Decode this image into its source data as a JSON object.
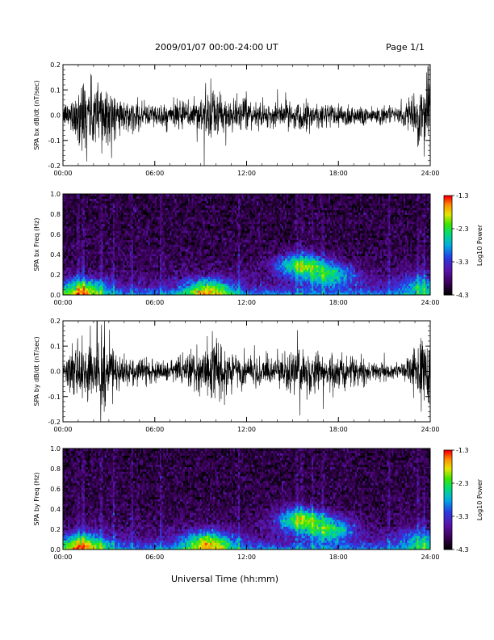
{
  "header": {
    "date_range": "2009/01/07  00:00-24:00 UT",
    "page": "Page 1/1"
  },
  "x_axis_title": "Universal Time (hh:mm)",
  "chart_data": [
    {
      "type": "line",
      "ylabel": "SPA bx dB/dt (nT/sec)",
      "xlim": [
        "00:00",
        "24:00"
      ],
      "ylim": [
        -0.2,
        0.2
      ],
      "xticks": [
        "00:00",
        "06:00",
        "12:00",
        "18:00",
        "24:00"
      ],
      "yticks": [
        "-0.2",
        "-0.1",
        "0.0",
        "0.1",
        "0.2"
      ],
      "envelope_hours": [
        0,
        0.5,
        1,
        1.3,
        1.5,
        2,
        2.5,
        3,
        3.5,
        4,
        5,
        6,
        7,
        8,
        9,
        9.5,
        10,
        11,
        12,
        13,
        14,
        15,
        16,
        17,
        18,
        19,
        20,
        21,
        22,
        22.5,
        23,
        23.5,
        24
      ],
      "envelope_amplitude": [
        0.04,
        0.07,
        0.12,
        0.2,
        0.16,
        0.14,
        0.2,
        0.12,
        0.08,
        0.06,
        0.06,
        0.05,
        0.05,
        0.06,
        0.09,
        0.11,
        0.1,
        0.07,
        0.06,
        0.05,
        0.05,
        0.06,
        0.06,
        0.06,
        0.05,
        0.05,
        0.04,
        0.04,
        0.03,
        0.06,
        0.1,
        0.14,
        0.17
      ]
    },
    {
      "type": "heatmap",
      "ylabel": "SPA bx Freq (Hz)",
      "xlim": [
        "00:00",
        "24:00"
      ],
      "ylim": [
        0.0,
        1.0
      ],
      "xticks": [
        "00:00",
        "06:00",
        "12:00",
        "18:00",
        "24:00"
      ],
      "yticks": [
        "0.0",
        "0.2",
        "0.4",
        "0.6",
        "0.8",
        "1.0"
      ],
      "colorbar": {
        "label": "Log10 Power",
        "min": -4.3,
        "max": -1.3,
        "ticks": [
          "-1.3",
          "-2.3",
          "-3.3",
          "-4.3"
        ]
      },
      "activity_blobs": [
        {
          "t": 9.5,
          "f": 0.05,
          "power": -2.2
        },
        {
          "t": 15.5,
          "f": 0.3,
          "power": -2.1
        },
        {
          "t": 17.5,
          "f": 0.2,
          "power": -2.5
        },
        {
          "t": 1.3,
          "f": 0.05,
          "power": -2.3
        },
        {
          "t": 23.5,
          "f": 0.1,
          "power": -3.0
        }
      ]
    },
    {
      "type": "line",
      "ylabel": "SPA by dB/dt (nT/sec)",
      "xlim": [
        "00:00",
        "24:00"
      ],
      "ylim": [
        -0.2,
        0.2
      ],
      "xticks": [
        "00:00",
        "06:00",
        "12:00",
        "18:00",
        "24:00"
      ],
      "yticks": [
        "-0.2",
        "-0.1",
        "0.0",
        "0.1",
        "0.2"
      ],
      "envelope_hours": [
        0,
        0.5,
        1,
        1.3,
        1.5,
        2,
        2.5,
        3,
        3.5,
        4,
        5,
        6,
        7,
        8,
        9,
        9.5,
        10,
        11,
        12,
        13,
        14,
        15,
        16,
        17,
        18,
        19,
        20,
        21,
        22,
        22.5,
        23,
        23.5,
        24
      ],
      "envelope_amplitude": [
        0.05,
        0.08,
        0.14,
        0.2,
        0.15,
        0.13,
        0.2,
        0.12,
        0.08,
        0.06,
        0.05,
        0.04,
        0.04,
        0.06,
        0.11,
        0.13,
        0.12,
        0.08,
        0.06,
        0.06,
        0.07,
        0.09,
        0.1,
        0.08,
        0.07,
        0.06,
        0.05,
        0.04,
        0.03,
        0.06,
        0.12,
        0.16,
        0.18
      ]
    },
    {
      "type": "heatmap",
      "ylabel": "SPA by Freq (Hz)",
      "xlim": [
        "00:00",
        "24:00"
      ],
      "ylim": [
        0.0,
        1.0
      ],
      "xticks": [
        "00:00",
        "06:00",
        "12:00",
        "18:00",
        "24:00"
      ],
      "yticks": [
        "0.0",
        "0.2",
        "0.4",
        "0.6",
        "0.8",
        "1.0"
      ],
      "colorbar": {
        "label": "Log10 Power",
        "min": -4.3,
        "max": -1.3,
        "ticks": [
          "-1.3",
          "-2.3",
          "-3.3",
          "-4.3"
        ]
      },
      "activity_blobs": [
        {
          "t": 9.5,
          "f": 0.07,
          "power": -2.0
        },
        {
          "t": 15.5,
          "f": 0.3,
          "power": -2.0
        },
        {
          "t": 17.5,
          "f": 0.2,
          "power": -2.4
        },
        {
          "t": 1.3,
          "f": 0.05,
          "power": -2.2
        },
        {
          "t": 23.5,
          "f": 0.1,
          "power": -3.0
        }
      ]
    }
  ]
}
